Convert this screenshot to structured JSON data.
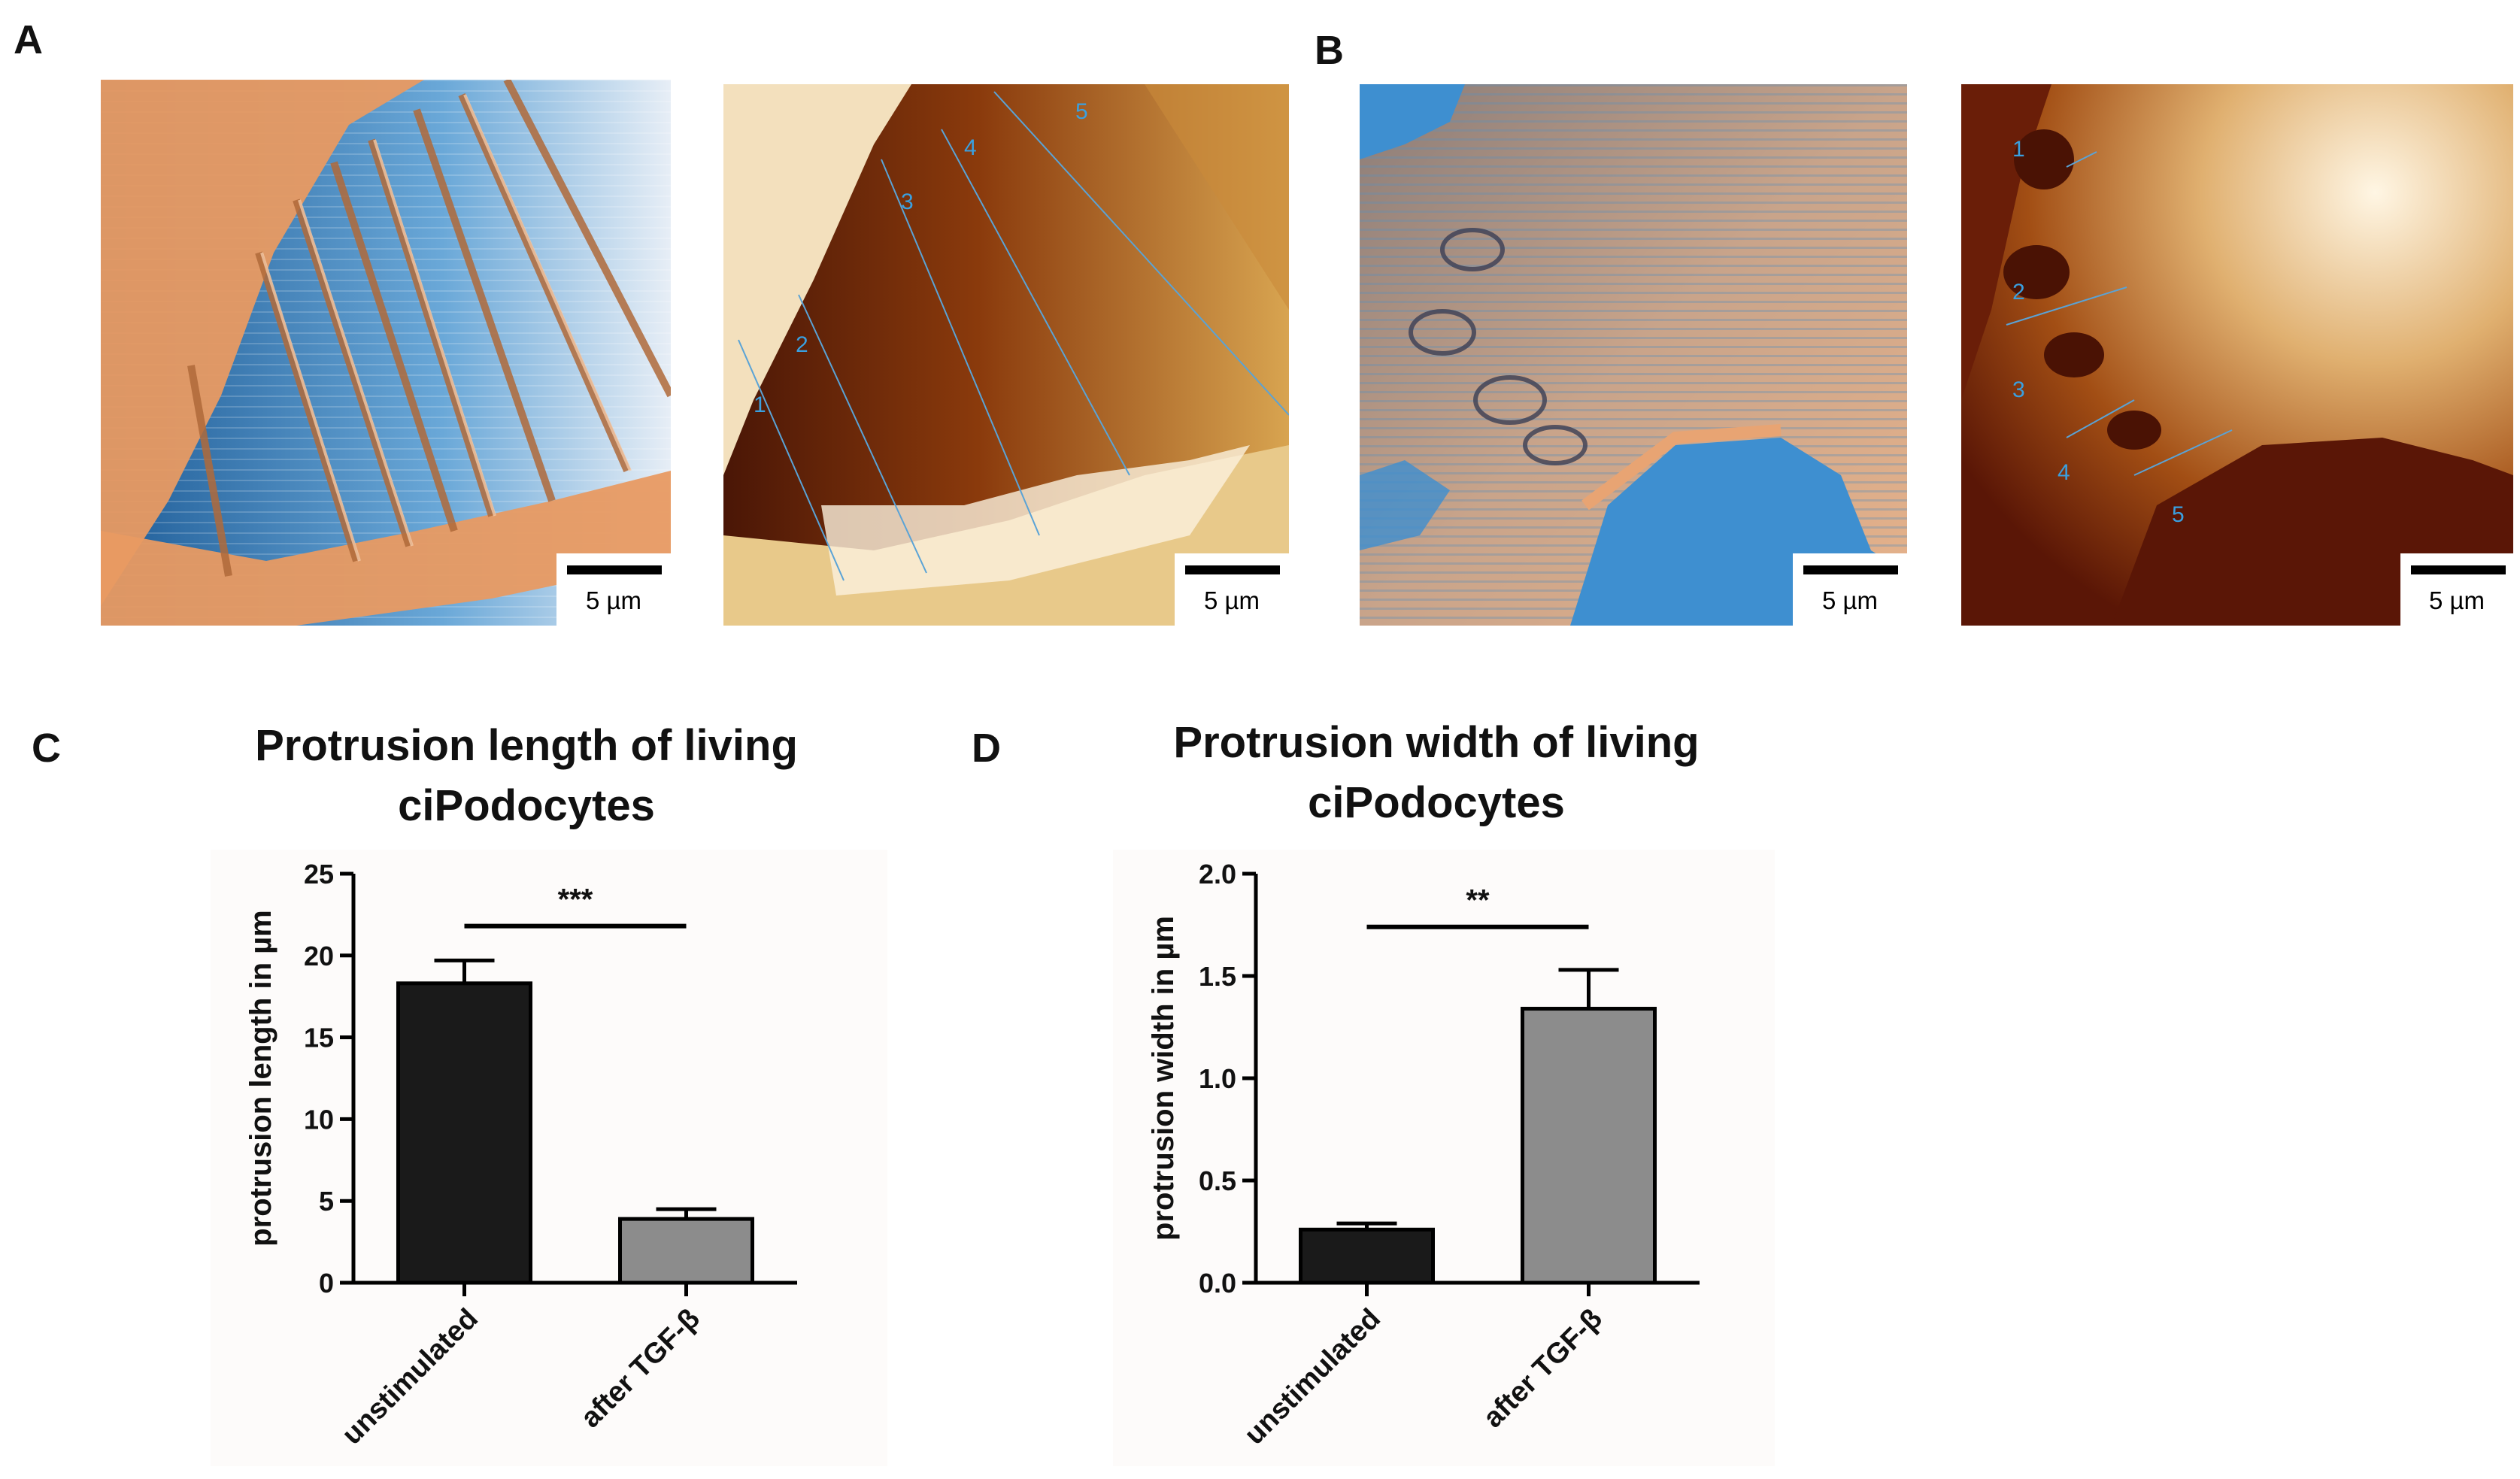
{
  "figure": {
    "panels": {
      "A": "A",
      "B": "B",
      "C": "C",
      "D": "D"
    },
    "images": {
      "scale_text": "5 µm",
      "A_right_labels": [
        "1",
        "2",
        "3",
        "4",
        "5"
      ],
      "B_right_labels": [
        "1",
        "2",
        "3",
        "4",
        "5"
      ]
    }
  },
  "colors": {
    "bar_black": "#1a1a1a",
    "bar_gray": "#8c8c8c",
    "afm_blue": "#3d86c6",
    "afm_orange": "#e8a473",
    "height_dark": "#5a1a05",
    "height_light": "#f7e6c2",
    "line_label": "#3aa0e0"
  },
  "chart_data": [
    {
      "type": "bar",
      "panel": "C",
      "title": "Protrusion length of living\nciPodocytes",
      "xlabel": "",
      "ylabel": "protrusion length in µm",
      "categories": [
        "unstimulated",
        "after TGF-β"
      ],
      "values": [
        18.3,
        3.9
      ],
      "errors": [
        1.4,
        0.6
      ],
      "ylim": [
        0,
        25
      ],
      "yticks": [
        "0",
        "5",
        "10",
        "15",
        "20",
        "25"
      ],
      "significance": "***"
    },
    {
      "type": "bar",
      "panel": "D",
      "title": "Protrusion width of living\nciPodocytes",
      "xlabel": "",
      "ylabel": "protrusion width in µm",
      "categories": [
        "unstimulated",
        "after TGF-β"
      ],
      "values": [
        0.26,
        1.34
      ],
      "errors": [
        0.03,
        0.19
      ],
      "ylim": [
        0,
        2.0
      ],
      "yticks": [
        "0.0",
        "0.5",
        "1.0",
        "1.5",
        "2.0"
      ],
      "significance": "**"
    }
  ]
}
